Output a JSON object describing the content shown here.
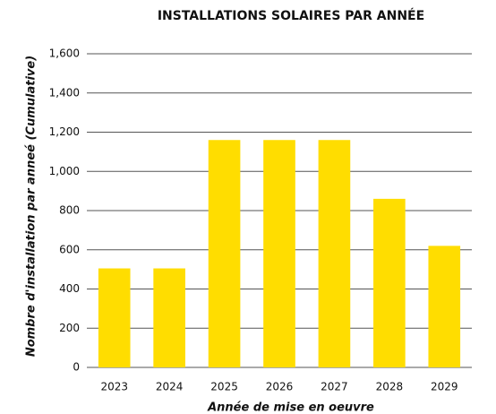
{
  "chart_data": {
    "type": "bar",
    "title": "INSTALLATIONS SOLAIRES PAR ANNÉE",
    "x_label": "Année de mise en oeuvre",
    "y_label": "Nombre d'installation par anneé (Cumulative)",
    "categories": [
      "2023",
      "2024",
      "2025",
      "2026",
      "2027",
      "2028",
      "2029"
    ],
    "values": [
      505,
      505,
      1160,
      1160,
      1160,
      860,
      620
    ],
    "color": "#FFDD00",
    "ylim": [
      0,
      1600
    ],
    "yticks": [
      0,
      200,
      400,
      600,
      800,
      {
        "value": 1000,
        "label": "1,000"
      },
      {
        "value": 1200,
        "label": "1,200"
      },
      {
        "value": 1400,
        "label": "1,400"
      },
      {
        "value": 1600,
        "label": "1,600"
      }
    ],
    "grid": true
  }
}
